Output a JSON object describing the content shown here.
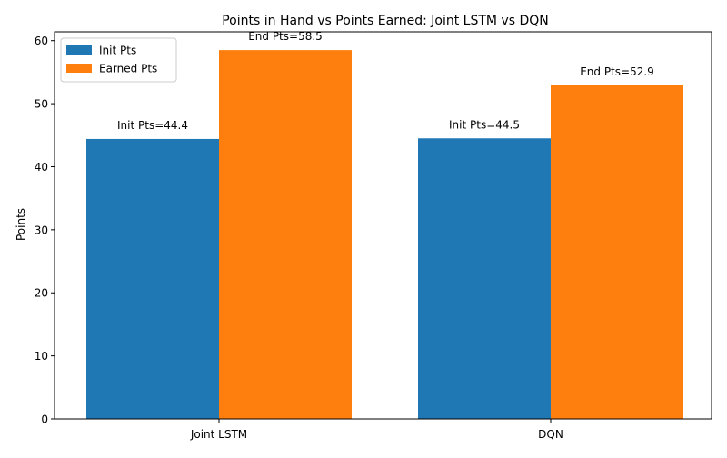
{
  "chart_data": {
    "type": "bar",
    "title": "Points in Hand vs Points Earned: Joint LSTM vs DQN",
    "xlabel": "",
    "ylabel": "Points",
    "categories": [
      "Joint LSTM",
      "DQN"
    ],
    "series": [
      {
        "name": "Init Pts",
        "values": [
          44.4,
          44.5
        ],
        "color": "#1f77b4",
        "labels": [
          "Init Pts=44.4",
          "Init Pts=44.5"
        ]
      },
      {
        "name": "Earned Pts",
        "values": [
          58.5,
          52.9
        ],
        "color": "#ff7f0e",
        "labels": [
          "End Pts=58.5",
          "End Pts=52.9"
        ]
      }
    ],
    "ylim": [
      0,
      61.4
    ],
    "yticks": [
      0,
      10,
      20,
      30,
      40,
      50,
      60
    ],
    "legend_position": "top-left",
    "grid": false
  }
}
